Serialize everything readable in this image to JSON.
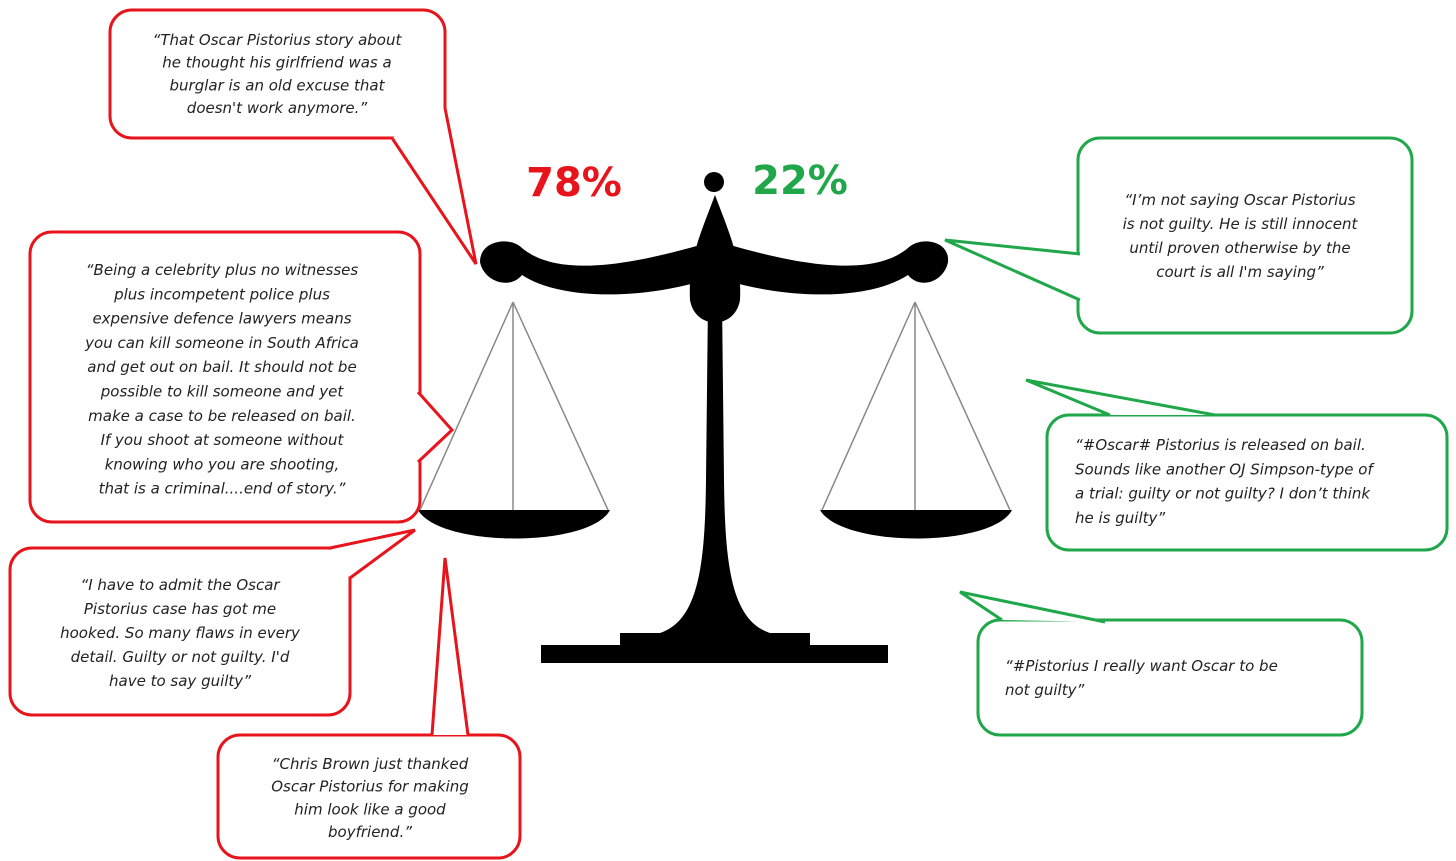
{
  "scale": {
    "left_percent": "78%",
    "right_percent": "22%"
  },
  "bubbles": [
    {
      "side": "guilty",
      "lines": [
        "“That Oscar Pistorius story about",
        "he thought his girlfriend was a",
        "burglar is an old excuse that",
        "doesn't work anymore.”"
      ]
    },
    {
      "side": "guilty",
      "lines": [
        "“Being a celebrity plus no witnesses",
        "plus incompetent police plus",
        "expensive defence lawyers means",
        "you can kill someone in South Africa",
        "and get out on bail. It should not be",
        "possible to kill someone and yet",
        "make a case to be released on bail.",
        "If you shoot at someone without",
        "knowing who you are shooting,",
        "that is a criminal....end of story.”"
      ]
    },
    {
      "side": "guilty",
      "lines": [
        "“I have to admit the Oscar",
        "Pistorius case has got me",
        "hooked. So many flaws in every",
        "detail. Guilty or not guilty. I'd",
        "have to say guilty”"
      ]
    },
    {
      "side": "guilty",
      "lines": [
        "“Chris Brown just thanked",
        "Oscar Pistorius for making",
        "him look like a good",
        "boyfriend.”"
      ]
    },
    {
      "side": "not-guilty",
      "lines": [
        "“I’m not saying Oscar Pistorius",
        "is not guilty. He is still innocent",
        "until proven otherwise by the",
        "court is all I'm saying”"
      ]
    },
    {
      "side": "not-guilty",
      "lines": [
        "“#Oscar# Pistorius is released on bail.",
        "Sounds like another OJ Simpson-type of",
        "a trial: guilty or not guilty? I don’t think",
        "he is guilty”"
      ]
    },
    {
      "side": "not-guilty",
      "lines": [
        "“#Pistorius  I really want Oscar to be",
        "not guilty”"
      ]
    }
  ]
}
